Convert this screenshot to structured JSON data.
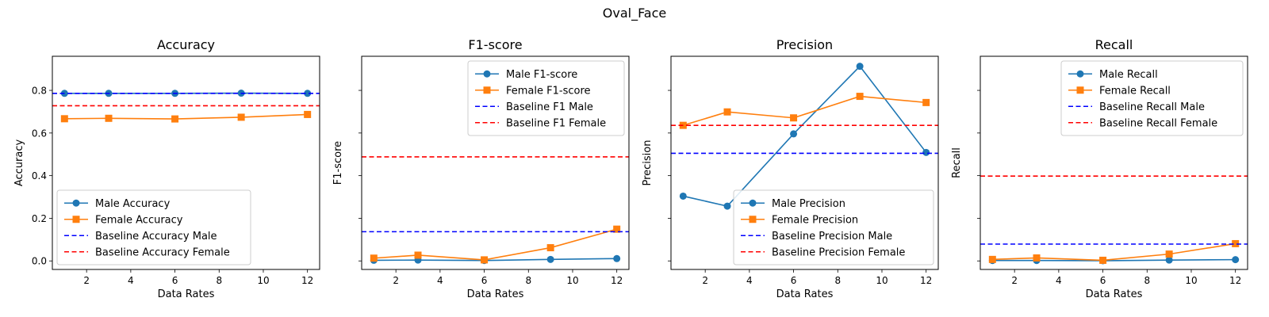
{
  "suptitle": "Oval_Face",
  "colors": {
    "male": "#1f77b4",
    "female": "#ff7f0e",
    "baseline_male": "#0000ff",
    "baseline_female": "#ff0000"
  },
  "chart_data": [
    {
      "type": "line",
      "title": "Accuracy",
      "xlabel": "Data Rates",
      "ylabel": "Accuracy",
      "xlim": [
        0.45,
        12.55
      ],
      "ylim": [
        -0.04,
        0.96
      ],
      "xticks": [
        2,
        4,
        6,
        8,
        10,
        12
      ],
      "yticks": [
        0.0,
        0.2,
        0.4,
        0.6,
        0.8
      ],
      "ytick_labels_visible": true,
      "legend_position": "lower-left",
      "x": [
        1,
        3,
        6,
        9,
        12
      ],
      "series": [
        {
          "name": "Male Accuracy",
          "marker": "circle",
          "color_key": "male",
          "values": [
            0.786,
            0.786,
            0.786,
            0.787,
            0.786
          ]
        },
        {
          "name": "Female Accuracy",
          "marker": "square",
          "color_key": "female",
          "values": [
            0.667,
            0.669,
            0.666,
            0.674,
            0.687
          ]
        }
      ],
      "baselines": [
        {
          "name": "Baseline Accuracy Male",
          "color_key": "baseline_male",
          "value": 0.786
        },
        {
          "name": "Baseline Accuracy Female",
          "color_key": "baseline_female",
          "value": 0.728
        }
      ]
    },
    {
      "type": "line",
      "title": "F1-score",
      "xlabel": "Data Rates",
      "ylabel": "F1-score",
      "xlim": [
        0.45,
        12.55
      ],
      "ylim": [
        -0.04,
        0.96
      ],
      "xticks": [
        2,
        4,
        6,
        8,
        10,
        12
      ],
      "yticks": [
        0.0,
        0.2,
        0.4,
        0.6,
        0.8
      ],
      "ytick_labels_visible": false,
      "legend_position": "upper-right",
      "x": [
        1,
        3,
        6,
        9,
        12
      ],
      "series": [
        {
          "name": "Male F1-score",
          "marker": "circle",
          "color_key": "male",
          "values": [
            0.003,
            0.004,
            0.002,
            0.007,
            0.011
          ]
        },
        {
          "name": "Female F1-score",
          "marker": "square",
          "color_key": "female",
          "values": [
            0.013,
            0.027,
            0.005,
            0.062,
            0.149
          ]
        }
      ],
      "baselines": [
        {
          "name": "Baseline F1 Male",
          "color_key": "baseline_male",
          "value": 0.137
        },
        {
          "name": "Baseline F1 Female",
          "color_key": "baseline_female",
          "value": 0.488
        }
      ]
    },
    {
      "type": "line",
      "title": "Precision",
      "xlabel": "Data Rates",
      "ylabel": "Precision",
      "xlim": [
        0.45,
        12.55
      ],
      "ylim": [
        -0.04,
        0.96
      ],
      "xticks": [
        2,
        4,
        6,
        8,
        10,
        12
      ],
      "yticks": [
        0.0,
        0.2,
        0.4,
        0.6,
        0.8
      ],
      "ytick_labels_visible": false,
      "legend_position": "lower-right",
      "x": [
        1,
        3,
        6,
        9,
        12
      ],
      "series": [
        {
          "name": "Male Precision",
          "marker": "circle",
          "color_key": "male",
          "values": [
            0.304,
            0.257,
            0.596,
            0.913,
            0.509
          ]
        },
        {
          "name": "Female Precision",
          "marker": "square",
          "color_key": "female",
          "values": [
            0.636,
            0.699,
            0.671,
            0.772,
            0.743
          ]
        }
      ],
      "baselines": [
        {
          "name": "Baseline Precision Male",
          "color_key": "baseline_male",
          "value": 0.505
        },
        {
          "name": "Baseline Precision Female",
          "color_key": "baseline_female",
          "value": 0.636
        }
      ]
    },
    {
      "type": "line",
      "title": "Recall",
      "xlabel": "Data Rates",
      "ylabel": "Recall",
      "xlim": [
        0.45,
        12.55
      ],
      "ylim": [
        -0.04,
        0.96
      ],
      "xticks": [
        2,
        4,
        6,
        8,
        10,
        12
      ],
      "yticks": [
        0.0,
        0.2,
        0.4,
        0.6,
        0.8
      ],
      "ytick_labels_visible": false,
      "legend_position": "upper-right",
      "x": [
        1,
        3,
        6,
        9,
        12
      ],
      "series": [
        {
          "name": "Male Recall",
          "marker": "circle",
          "color_key": "male",
          "values": [
            0.002,
            0.002,
            0.001,
            0.004,
            0.006
          ]
        },
        {
          "name": "Female Recall",
          "marker": "square",
          "color_key": "female",
          "values": [
            0.007,
            0.014,
            0.003,
            0.032,
            0.081
          ]
        }
      ],
      "baselines": [
        {
          "name": "Baseline Recall Male",
          "color_key": "baseline_male",
          "value": 0.079
        },
        {
          "name": "Baseline Recall Female",
          "color_key": "baseline_female",
          "value": 0.398
        }
      ]
    }
  ]
}
